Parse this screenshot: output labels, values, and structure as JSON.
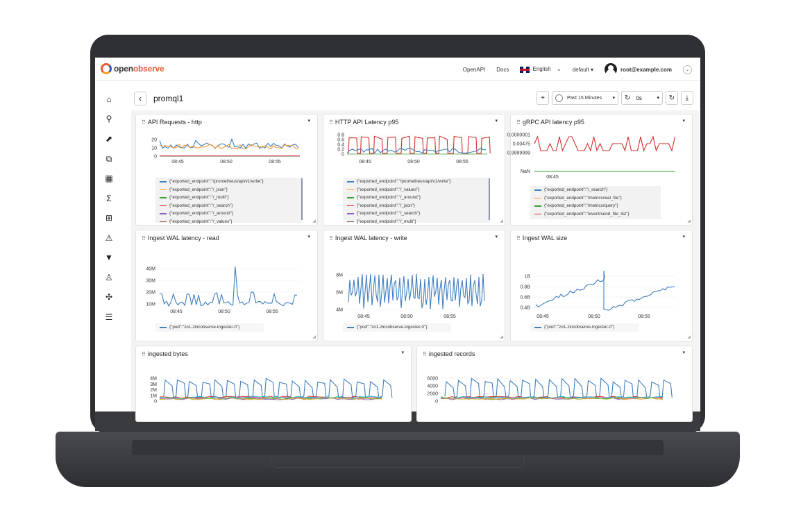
{
  "app": {
    "brand_left": "open",
    "brand_right": "observe",
    "nav": {
      "openapi": "OpenAPI",
      "docs": "Docs",
      "language": "English",
      "org": "default",
      "user": "root@example.com"
    }
  },
  "dashboard": {
    "title": "promql1",
    "time_range": "Past 15 Minutes",
    "refresh_interval": "0s"
  },
  "colors": {
    "blue": "#3f7fbf",
    "orange": "#f59a2e",
    "green": "#3aa13a",
    "red": "#d62d2d",
    "purple": "#8e5fc2",
    "brown": "#8c5a46",
    "pink": "#e377c2"
  },
  "panels": [
    {
      "title": "API Requests - http",
      "y_ticks": [
        "20",
        "10",
        "0"
      ],
      "x_ticks": [
        "08:45",
        "08:50",
        "08:55"
      ],
      "legend": [
        "{\"exported_endpoint\":\"/prometheus/api/v1/write\"}",
        "{\"exported_endpoint\":\"/_json\"}",
        "{\"exported_endpoint\":\"/_multi\"}",
        "{\"exported_endpoint\":\"/_search\"}",
        "{\"exported_endpoint\":\"/_around\"}",
        "{\"exported_endpoint\":\"/_values\"}"
      ]
    },
    {
      "title": "HTTP API Latency p95",
      "y_ticks": [
        "0.8",
        "0.6",
        "0.4",
        "0.2",
        "0"
      ],
      "x_ticks": [
        "08:45",
        "08:50",
        "08:55"
      ],
      "legend": [
        "{\"exported_endpoint\":\"/prometheus/api/v1/write\"}",
        "{\"exported_endpoint\":\"/_values\"}",
        "{\"exported_endpoint\":\"/_around\"}",
        "{\"exported_endpoint\":\"/_json\"}",
        "{\"exported_endpoint\":\"/_search\"}",
        "{\"exported_endpoint\":\"/_multi\"}"
      ]
    },
    {
      "title": "gRPC API latency p95",
      "y_ticks": [
        "0.0000001",
        "0.00475",
        "0.9999999",
        "NaN"
      ],
      "x_ticks": [
        "08:45"
      ],
      "legend": [
        "{\"exported_endpoint\":\"/_search\"}",
        "{\"exported_endpoint\":\"/metrics/wal_file\"}",
        "{\"exported_endpoint\":\"/metrics/query\"}",
        "{\"exported_endpoint\":\"/event/send_file_list\"}"
      ]
    },
    {
      "title": "Ingest WAL latency - read",
      "y_ticks": [
        "40M",
        "30M",
        "20M",
        "10M"
      ],
      "x_ticks": [
        "08:45",
        "08:50",
        "08:55"
      ],
      "legend": [
        "{\"pod\":\"zo1-zincobserve-ingester-0\"}"
      ]
    },
    {
      "title": "Ingest WAL latency - write",
      "y_ticks": [
        "8M",
        "6M",
        "4M"
      ],
      "x_ticks": [
        "08:45",
        "08:50",
        "08:55"
      ],
      "legend": [
        "{\"pod\":\"zo1-zincobserve-ingester-0\"}"
      ]
    },
    {
      "title": "Ingest WAL size",
      "y_ticks": [
        "1B",
        "0.8B",
        "0.6B",
        "0.4B"
      ],
      "x_ticks": [
        "08:45",
        "08:50",
        "08:55"
      ],
      "legend": [
        "{\"pod\":\"zo1-zincobserve-ingester-0\"}"
      ]
    },
    {
      "title": "ingested bytes",
      "y_ticks": [
        "4M",
        "3M",
        "2M",
        "1M",
        "0"
      ]
    },
    {
      "title": "ingested records",
      "y_ticks": [
        "6000",
        "4000",
        "2000",
        "0"
      ]
    }
  ]
}
